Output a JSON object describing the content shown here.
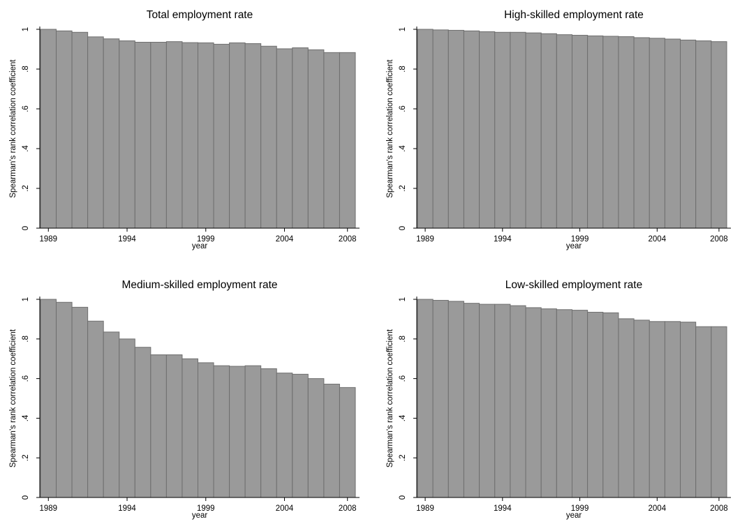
{
  "colors": {
    "bar_fill": "#9a9a9a",
    "bar_edge": "#6e6e6e",
    "axis": "#000000",
    "background": "#ffffff"
  },
  "chart_data": [
    {
      "type": "bar",
      "title": "Total employment rate",
      "xlabel": "year",
      "ylabel": "Spearman's rank correlation coefficient",
      "ylim": [
        0,
        1
      ],
      "yticks": [
        0,
        0.2,
        0.4,
        0.6,
        0.8,
        1
      ],
      "ytick_labels": [
        "0",
        ".2",
        ".4",
        ".6",
        ".8",
        "1"
      ],
      "xticks": [
        1989,
        1994,
        1999,
        2004,
        2008
      ],
      "xtick_labels": [
        "1989",
        "1994",
        "1999",
        "2004",
        "2008"
      ],
      "categories": [
        1989,
        1990,
        1991,
        1992,
        1993,
        1994,
        1995,
        1996,
        1997,
        1998,
        1999,
        2000,
        2001,
        2002,
        2003,
        2004,
        2005,
        2006,
        2007,
        2008
      ],
      "values": [
        1.0,
        0.992,
        0.985,
        0.962,
        0.952,
        0.942,
        0.935,
        0.935,
        0.938,
        0.933,
        0.932,
        0.925,
        0.932,
        0.928,
        0.915,
        0.902,
        0.907,
        0.897,
        0.883,
        0.883
      ],
      "grid": false
    },
    {
      "type": "bar",
      "title": "High-skilled employment rate",
      "xlabel": "year",
      "ylabel": "Spearman's rank correlation coefficient",
      "ylim": [
        0,
        1
      ],
      "yticks": [
        0,
        0.2,
        0.4,
        0.6,
        0.8,
        1
      ],
      "ytick_labels": [
        "0",
        ".2",
        ".4",
        ".6",
        ".8",
        "1"
      ],
      "xticks": [
        1989,
        1994,
        1999,
        2004,
        2008
      ],
      "xtick_labels": [
        "1989",
        "1994",
        "1999",
        "2004",
        "2008"
      ],
      "categories": [
        1989,
        1990,
        1991,
        1992,
        1993,
        1994,
        1995,
        1996,
        1997,
        1998,
        1999,
        2000,
        2001,
        2002,
        2003,
        2004,
        2005,
        2006,
        2007,
        2008
      ],
      "values": [
        1.0,
        0.997,
        0.995,
        0.992,
        0.988,
        0.985,
        0.985,
        0.982,
        0.978,
        0.973,
        0.97,
        0.967,
        0.965,
        0.963,
        0.958,
        0.955,
        0.951,
        0.946,
        0.942,
        0.938
      ],
      "grid": false
    },
    {
      "type": "bar",
      "title": "Medium-skilled employment rate",
      "xlabel": "year",
      "ylabel": "Spearman's rank correlation coefficient",
      "ylim": [
        0,
        1
      ],
      "yticks": [
        0,
        0.2,
        0.4,
        0.6,
        0.8,
        1
      ],
      "ytick_labels": [
        "0",
        ".2",
        ".4",
        ".6",
        ".8",
        "1"
      ],
      "xticks": [
        1989,
        1994,
        1999,
        2004,
        2008
      ],
      "xtick_labels": [
        "1989",
        "1994",
        "1999",
        "2004",
        "2008"
      ],
      "categories": [
        1989,
        1990,
        1991,
        1992,
        1993,
        1994,
        1995,
        1996,
        1997,
        1998,
        1999,
        2000,
        2001,
        2002,
        2003,
        2004,
        2005,
        2006,
        2007,
        2008
      ],
      "values": [
        1.0,
        0.985,
        0.96,
        0.89,
        0.835,
        0.8,
        0.758,
        0.72,
        0.72,
        0.7,
        0.68,
        0.665,
        0.662,
        0.665,
        0.65,
        0.628,
        0.622,
        0.6,
        0.572,
        0.555
      ],
      "grid": false
    },
    {
      "type": "bar",
      "title": "Low-skilled employment rate",
      "xlabel": "year",
      "ylabel": "Spearman's rank correlation coefficient",
      "ylim": [
        0,
        1
      ],
      "yticks": [
        0,
        0.2,
        0.4,
        0.6,
        0.8,
        1
      ],
      "ytick_labels": [
        "0",
        ".2",
        ".4",
        ".6",
        ".8",
        "1"
      ],
      "xticks": [
        1989,
        1994,
        1999,
        2004,
        2008
      ],
      "xtick_labels": [
        "1989",
        "1994",
        "1999",
        "2004",
        "2008"
      ],
      "categories": [
        1989,
        1990,
        1991,
        1992,
        1993,
        1994,
        1995,
        1996,
        1997,
        1998,
        1999,
        2000,
        2001,
        2002,
        2003,
        2004,
        2005,
        2006,
        2007,
        2008
      ],
      "values": [
        1.0,
        0.995,
        0.99,
        0.98,
        0.975,
        0.975,
        0.968,
        0.958,
        0.952,
        0.948,
        0.945,
        0.935,
        0.932,
        0.902,
        0.895,
        0.888,
        0.888,
        0.885,
        0.862,
        0.862
      ],
      "grid": false
    }
  ]
}
